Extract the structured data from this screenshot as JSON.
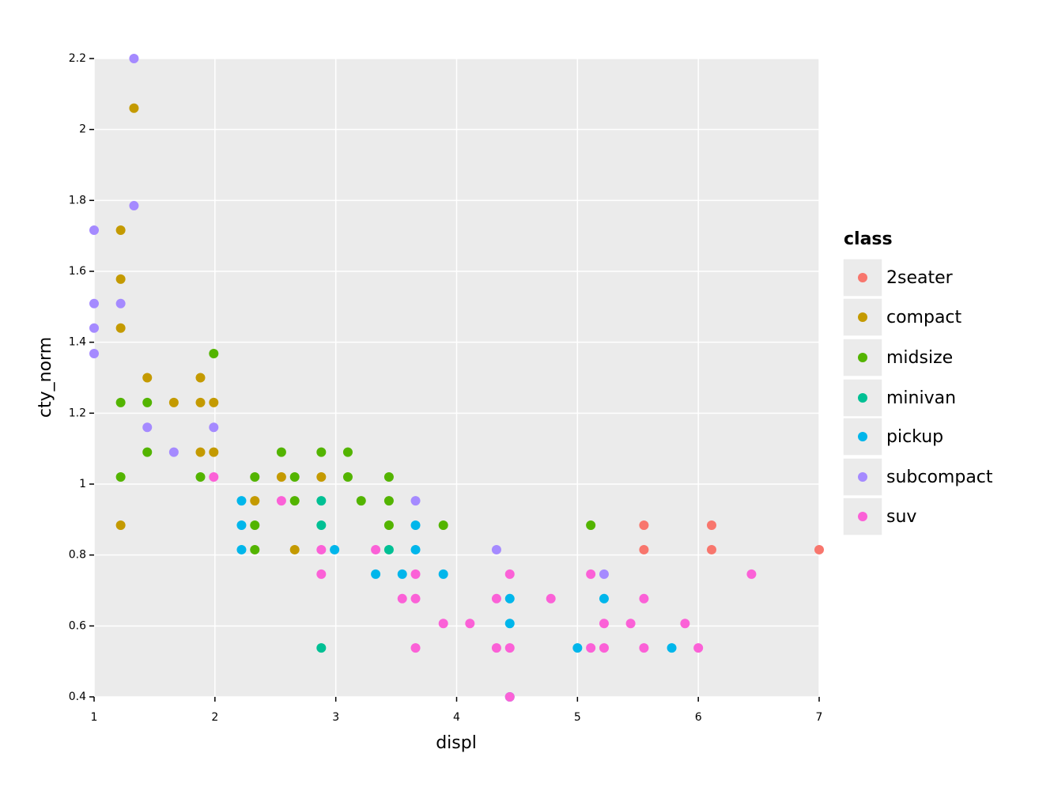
{
  "chart_data": {
    "type": "scatter",
    "x_label": "displ",
    "y_label": "cty_norm",
    "legend_title": "class",
    "xlim": [
      1,
      7
    ],
    "ylim": [
      0.4,
      2.2
    ],
    "xticks": [
      1,
      2,
      3,
      4,
      5,
      6,
      7
    ],
    "yticks": [
      0.4,
      0.6,
      0.8,
      1,
      1.2,
      1.4,
      1.6,
      1.8,
      2,
      2.2
    ],
    "grid": true,
    "legend": "right",
    "series": [
      {
        "name": "2seater",
        "color": "#F8766D",
        "x": [
          5.55,
          5.55,
          6.11,
          6.11,
          7.0
        ],
        "values": [
          0.884,
          0.815,
          0.884,
          0.815,
          0.815
        ]
      },
      {
        "name": "compact",
        "color": "#C49A00",
        "x": [
          1.33,
          1.22,
          1.22,
          1.22,
          1.22,
          1.44,
          1.66,
          1.88,
          1.88,
          1.88,
          1.99,
          1.99,
          2.33,
          2.55,
          2.66,
          2.88
        ],
        "values": [
          2.06,
          1.716,
          1.578,
          1.44,
          0.884,
          1.3,
          1.23,
          1.3,
          1.23,
          1.09,
          1.23,
          1.09,
          0.953,
          1.02,
          0.815,
          1.02
        ]
      },
      {
        "name": "midsize",
        "color": "#53B400",
        "x": [
          1.22,
          1.22,
          1.44,
          1.44,
          1.88,
          1.99,
          2.33,
          2.33,
          2.33,
          2.55,
          2.66,
          2.66,
          2.88,
          3.1,
          3.1,
          3.21,
          3.44,
          3.44,
          3.44,
          3.89,
          5.11
        ],
        "values": [
          1.23,
          1.02,
          1.23,
          1.09,
          1.02,
          1.368,
          1.02,
          0.884,
          0.815,
          1.09,
          1.02,
          0.953,
          1.09,
          1.09,
          1.02,
          0.953,
          1.02,
          0.953,
          0.884,
          0.884,
          0.884
        ]
      },
      {
        "name": "minivan",
        "color": "#00C094",
        "x": [
          2.88,
          2.88,
          2.88,
          3.44
        ],
        "values": [
          0.953,
          0.884,
          0.538,
          0.815
        ]
      },
      {
        "name": "pickup",
        "color": "#00B6EB",
        "x": [
          2.22,
          2.22,
          2.22,
          2.99,
          3.33,
          3.55,
          3.66,
          3.66,
          3.89,
          4.44,
          4.44,
          5.0,
          5.22,
          5.78,
          4.44
        ],
        "values": [
          0.953,
          0.884,
          0.815,
          0.815,
          0.746,
          0.746,
          0.884,
          0.815,
          0.746,
          0.677,
          0.607,
          0.538,
          0.677,
          0.538,
          0.4
        ]
      },
      {
        "name": "subcompact",
        "color": "#A58AFF",
        "x": [
          1.33,
          1.33,
          1.0,
          1.0,
          1.0,
          1.0,
          1.22,
          1.44,
          1.66,
          1.99,
          3.66,
          4.33,
          5.22
        ],
        "values": [
          2.2,
          1.785,
          1.716,
          1.509,
          1.44,
          1.368,
          1.509,
          1.16,
          1.09,
          1.16,
          0.953,
          0.815,
          0.746
        ]
      },
      {
        "name": "suv",
        "color": "#FB61D7",
        "x": [
          1.99,
          2.55,
          2.88,
          2.88,
          3.33,
          3.55,
          3.66,
          3.66,
          3.66,
          3.89,
          4.11,
          4.33,
          4.33,
          4.44,
          4.44,
          4.44,
          4.78,
          5.11,
          5.11,
          5.22,
          5.22,
          5.44,
          5.55,
          5.55,
          5.89,
          6.0,
          6.44
        ],
        "values": [
          1.02,
          0.953,
          0.815,
          0.746,
          0.815,
          0.677,
          0.746,
          0.677,
          0.538,
          0.607,
          0.607,
          0.677,
          0.538,
          0.746,
          0.538,
          0.4,
          0.677,
          0.746,
          0.538,
          0.607,
          0.538,
          0.607,
          0.677,
          0.538,
          0.607,
          0.538,
          0.746
        ]
      }
    ]
  }
}
